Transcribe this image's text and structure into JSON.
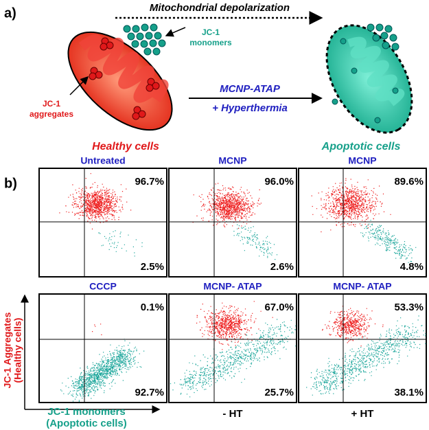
{
  "panel_a": {
    "label": "a)",
    "top_arrow": "Mitochondrial depolarization",
    "monomers_label": [
      "JC-1",
      "monomers"
    ],
    "aggregates_label": [
      "JC-1",
      "aggregates"
    ],
    "treatment": [
      "MCNP-ATAP",
      "+ Hyperthermia"
    ],
    "healthy": "Healthy cells",
    "apoptotic": "Apoptotic cells"
  },
  "panel_b": {
    "label": "b)",
    "plots": [
      {
        "title": "Untreated",
        "upper": "96.7%",
        "lower": "2.5%"
      },
      {
        "title": "MCNP",
        "upper": "96.0%",
        "lower": "2.6%"
      },
      {
        "title": "MCNP",
        "upper": "89.6%",
        "lower": "4.8%"
      },
      {
        "title": "CCCP",
        "upper": "0.1%",
        "lower": "92.7%"
      },
      {
        "title": "MCNP- ATAP",
        "upper": "67.0%",
        "lower": "25.7%"
      },
      {
        "title": "MCNP- ATAP",
        "upper": "53.3%",
        "lower": "38.1%"
      }
    ],
    "y_axis": [
      "JC-1 Aggregates",
      "(Healthy cells)"
    ],
    "x_axis": [
      "JC-1 monomers",
      "(Apoptotic cells)"
    ],
    "conditions": [
      "- HT",
      "+ HT"
    ]
  }
}
